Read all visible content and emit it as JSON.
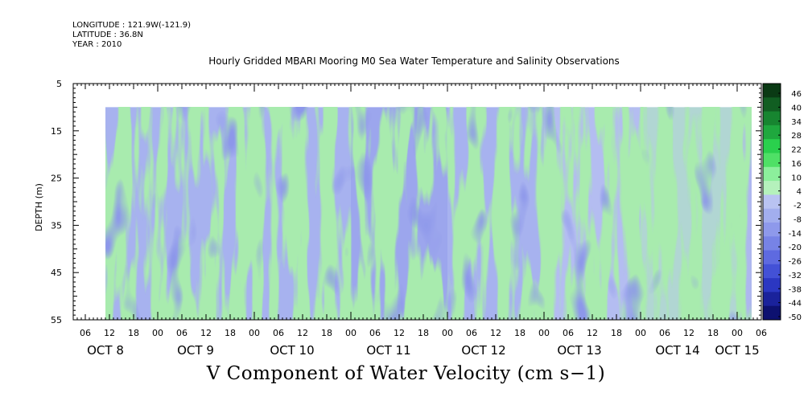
{
  "meta": {
    "longitude": "LONGITUDE : 121.9W(-121.9)",
    "latitude": "LATITUDE : 36.8N",
    "year": "YEAR : 2010"
  },
  "chart_title": "Hourly Gridded MBARI Mooring M0 Sea Water Temperature and Salinity Observations",
  "bottom_title": "V Component of Water Velocity (cm s−1)",
  "chart_data": {
    "type": "heatmap",
    "title": "Hourly Gridded MBARI Mooring M0 Sea Water Temperature and Salinity Observations",
    "variable": "V Component of Water Velocity (cm s-1)",
    "ylabel": "DEPTH (m)",
    "y_reversed": true,
    "ylim": [
      5,
      55
    ],
    "y_ticks": [
      5,
      15,
      25,
      35,
      45,
      55
    ],
    "data_depth_range": [
      10,
      55
    ],
    "x_start": "2010-10-08 03:00",
    "x_end": "2010-10-15 06:00",
    "data_start": "2010-10-08 11:00",
    "data_end": "2010-10-15 05:00",
    "x_hour_tick_labels": [
      "06",
      "12",
      "18",
      "00",
      "06",
      "12",
      "18",
      "00",
      "06",
      "12",
      "18",
      "00",
      "06",
      "12",
      "18",
      "00",
      "06",
      "12",
      "18",
      "00",
      "06",
      "12",
      "18",
      "00",
      "06",
      "12",
      "18",
      "00",
      "06"
    ],
    "x_day_labels": [
      "OCT  8",
      "OCT  9",
      "OCT 10",
      "OCT 11",
      "OCT 12",
      "OCT 13",
      "OCT 14",
      "OCT 15"
    ],
    "colorbar": {
      "tick_labels": [
        "46",
        "40",
        "34",
        "28",
        "22",
        "16",
        "10",
        "4",
        "-2",
        "-8",
        "-14",
        "-20",
        "-26",
        "-32",
        "-38",
        "-44",
        "-50"
      ],
      "min": -50,
      "max": 49,
      "colors_top_to_bottom": [
        "#0a3a14",
        "#115e22",
        "#178530",
        "#1fa83e",
        "#2ad04d",
        "#4fe066",
        "#8cef9c",
        "#b5f1bc",
        "#b9c3f2",
        "#a2aeee",
        "#8e99eb",
        "#7783e6",
        "#5e6ae0",
        "#4351d6",
        "#2b37c2",
        "#1a229b",
        "#0d1170"
      ]
    },
    "v_by_day_surface_to_bottom": [
      {
        "day": "OCT 8",
        "mean_v": -6,
        "trend": "mostly negative, positive near bottom"
      },
      {
        "day": "OCT 9",
        "mean_v": -4,
        "trend": "mixed, positive streaks"
      },
      {
        "day": "OCT 10",
        "mean_v": -8,
        "trend": "mostly negative"
      },
      {
        "day": "OCT 11",
        "mean_v": -10,
        "trend": "mostly negative"
      },
      {
        "day": "OCT 12",
        "mean_v": -8,
        "trend": "negative with strong core near 40-50 m"
      },
      {
        "day": "OCT 13",
        "mean_v": 2,
        "trend": "mixed positive"
      },
      {
        "day": "OCT 14",
        "mean_v": 8,
        "trend": "mostly positive"
      }
    ]
  }
}
